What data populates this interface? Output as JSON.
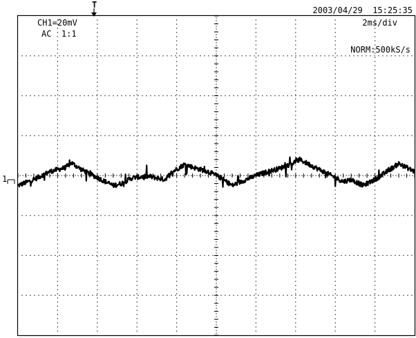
{
  "header": {
    "timestamp": "2003/04/29  15:25:35",
    "channel": "CH1=20mV",
    "coupling": "AC  1:1",
    "timebase": "2ms/div",
    "sample_rate": "NORM:500kS/s",
    "trigger_marker": "T",
    "ground_marker": "1"
  },
  "chart_data": {
    "type": "line",
    "title": "",
    "xlabel": "",
    "ylabel": "",
    "grid": true,
    "divisions": {
      "x": 10,
      "y": 8
    },
    "xlim": [
      0,
      10
    ],
    "ylim": [
      -4,
      4
    ],
    "series": [
      {
        "name": "",
        "color": "#000000",
        "x": [
          0,
          0.4,
          0.8,
          1.2,
          1.35,
          1.6,
          2.0,
          2.4,
          2.6,
          2.9,
          3.3,
          3.7,
          3.9,
          4.2,
          4.5,
          4.8,
          5.1,
          5.4,
          5.7,
          6.0,
          6.3,
          6.6,
          6.9,
          7.1,
          7.4,
          7.8,
          8.2,
          8.4,
          8.7,
          9.0,
          9.3,
          9.6,
          10.0
        ],
        "y": [
          -0.25,
          -0.1,
          0.1,
          0.2,
          0.32,
          0.15,
          -0.05,
          -0.25,
          -0.2,
          -0.05,
          -0.02,
          -0.1,
          0.1,
          0.28,
          0.18,
          0.1,
          -0.05,
          -0.25,
          -0.12,
          0.0,
          0.1,
          0.18,
          0.3,
          0.4,
          0.25,
          0.05,
          -0.15,
          -0.1,
          -0.25,
          -0.1,
          0.1,
          0.3,
          0.1
        ]
      }
    ]
  }
}
